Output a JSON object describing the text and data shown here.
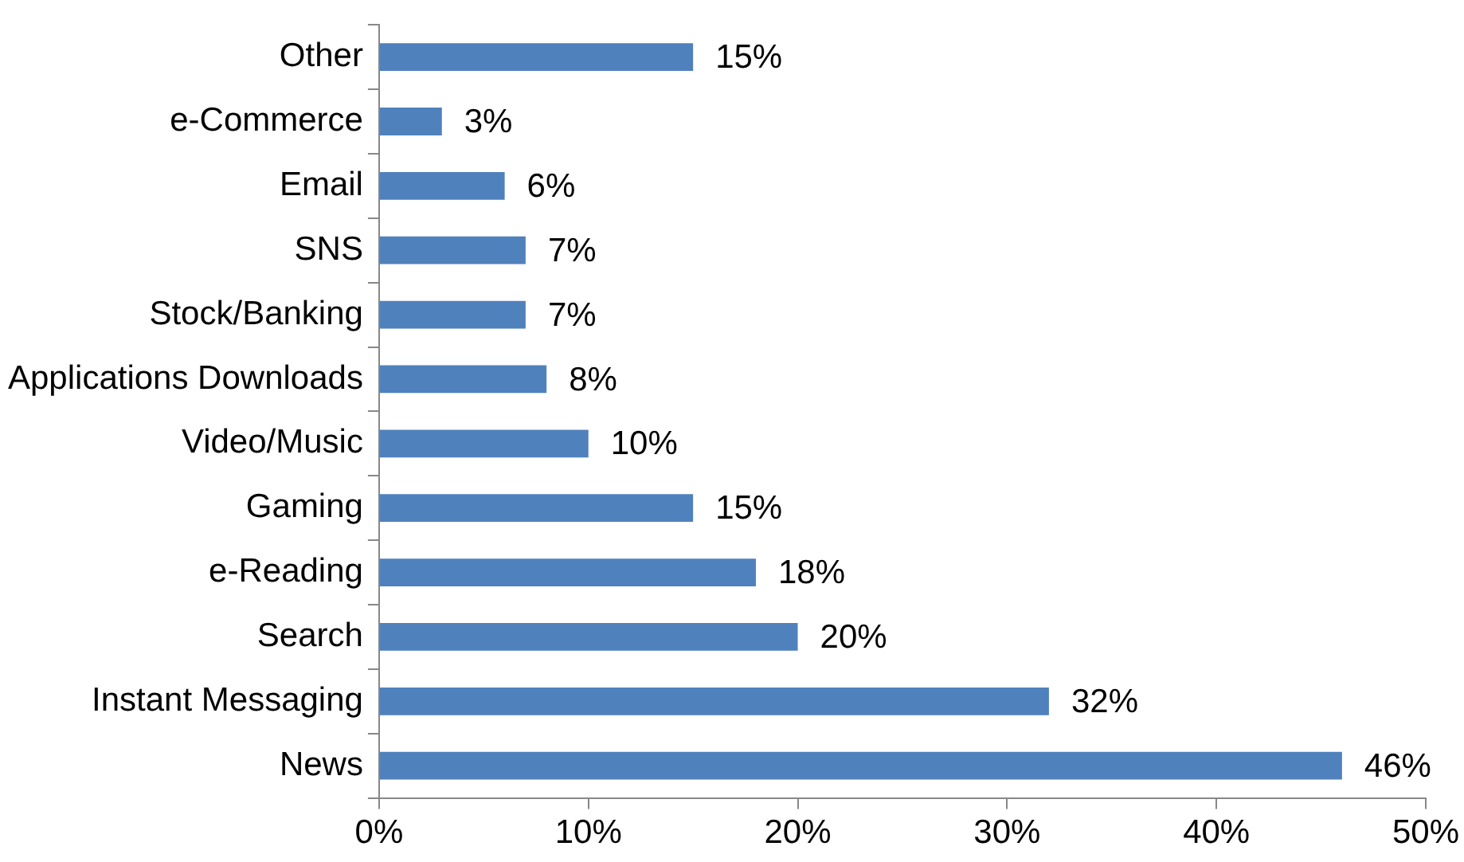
{
  "chart_data": {
    "type": "bar",
    "orientation": "horizontal",
    "categories": [
      "Other",
      "e-Commerce",
      "Email",
      "SNS",
      "Stock/Banking",
      "Applications Downloads",
      "Video/Music",
      "Gaming",
      "e-Reading",
      "Search",
      "Instant Messaging",
      "News"
    ],
    "values": [
      15,
      3,
      6,
      7,
      7,
      8,
      10,
      15,
      18,
      20,
      32,
      46
    ],
    "value_labels": [
      "15%",
      "3%",
      "6%",
      "7%",
      "7%",
      "8%",
      "10%",
      "15%",
      "18%",
      "20%",
      "32%",
      "46%"
    ],
    "color": "#4f81bd",
    "xlim": [
      0,
      50
    ],
    "xticks": [
      {
        "value": 0,
        "label": "0%"
      },
      {
        "value": 10,
        "label": "10%"
      },
      {
        "value": 20,
        "label": "20%"
      },
      {
        "value": 30,
        "label": "30%"
      },
      {
        "value": 40,
        "label": "40%"
      },
      {
        "value": 50,
        "label": "50%"
      }
    ]
  }
}
